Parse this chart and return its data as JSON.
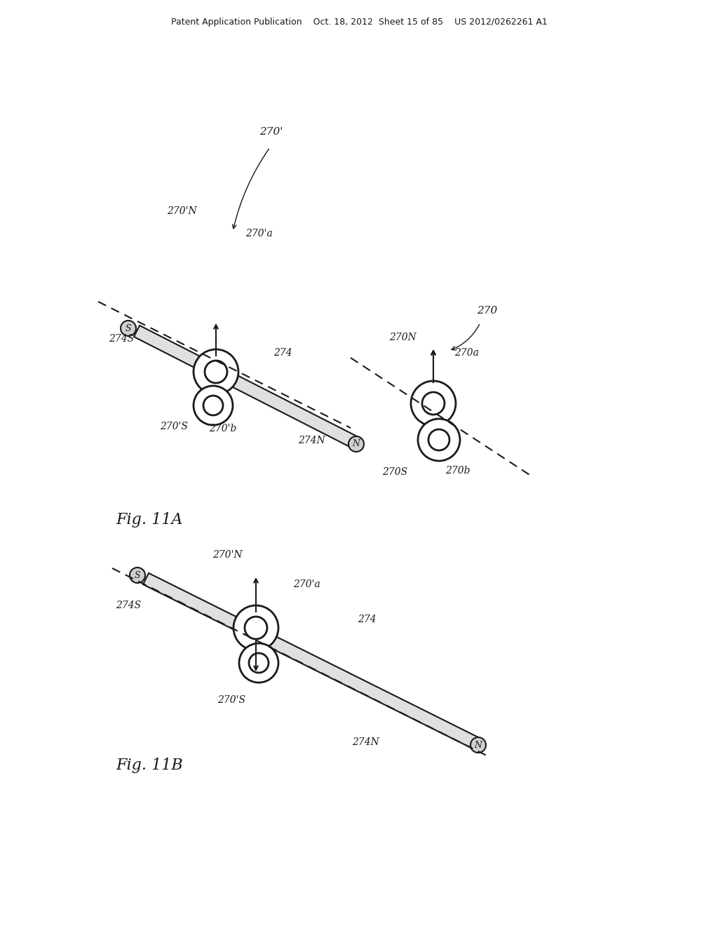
{
  "bg_color": "#ffffff",
  "header_text": "Patent Application Publication    Oct. 18, 2012  Sheet 15 of 85    US 2012/0262261 A1",
  "fig_label_A": "Fig. 11A",
  "fig_label_B": "Fig. 11B",
  "line_color": "#1a1a1a",
  "text_color": "#1a1a1a"
}
